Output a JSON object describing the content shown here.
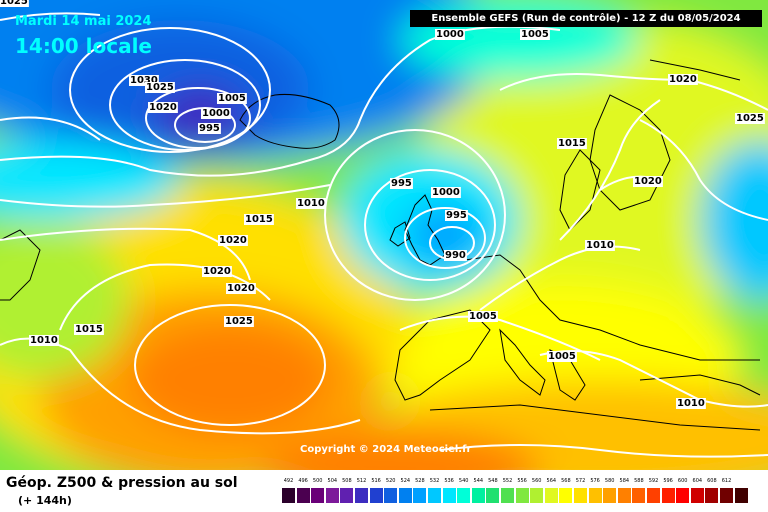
{
  "header": {
    "date": "Mardi 14 mai 2024",
    "time": "14:00 locale",
    "run": "Ensemble GEFS  (Run de contrôle)  -  12 Z du 08/05/2024"
  },
  "copyright": "Copyright © 2024 Meteociel.fr",
  "legend": {
    "title": "Géop. Z500 & pression au sol",
    "subtitle": "(+ 144h)",
    "scale": [
      {
        "label": "492",
        "color": "#2b002b"
      },
      {
        "label": "496",
        "color": "#4b0050"
      },
      {
        "label": "500",
        "color": "#6a0078"
      },
      {
        "label": "504",
        "color": "#7d1a9a"
      },
      {
        "label": "508",
        "color": "#6020b0"
      },
      {
        "label": "512",
        "color": "#3c2cc0"
      },
      {
        "label": "516",
        "color": "#2040d0"
      },
      {
        "label": "520",
        "color": "#1060e0"
      },
      {
        "label": "524",
        "color": "#0080f0"
      },
      {
        "label": "528",
        "color": "#00a0ff"
      },
      {
        "label": "532",
        "color": "#00c8ff"
      },
      {
        "label": "536",
        "color": "#00e6ff"
      },
      {
        "label": "540",
        "color": "#00ffd8"
      },
      {
        "label": "544",
        "color": "#00f0a0"
      },
      {
        "label": "548",
        "color": "#20e070"
      },
      {
        "label": "552",
        "color": "#50e050"
      },
      {
        "label": "556",
        "color": "#80e840"
      },
      {
        "label": "560",
        "color": "#b0f030"
      },
      {
        "label": "564",
        "color": "#e0f820"
      },
      {
        "label": "568",
        "color": "#ffff00"
      },
      {
        "label": "572",
        "color": "#ffe000"
      },
      {
        "label": "576",
        "color": "#ffc000"
      },
      {
        "label": "580",
        "color": "#ffa000"
      },
      {
        "label": "584",
        "color": "#ff8000"
      },
      {
        "label": "588",
        "color": "#ff6000"
      },
      {
        "label": "592",
        "color": "#ff4000"
      },
      {
        "label": "596",
        "color": "#ff2000"
      },
      {
        "label": "600",
        "color": "#ff0000"
      },
      {
        "label": "604",
        "color": "#d00000"
      },
      {
        "label": "608",
        "color": "#a00000"
      },
      {
        "label": "612",
        "color": "#700000"
      },
      {
        "label": "",
        "color": "#400000"
      }
    ]
  },
  "isobar_labels": [
    "1025",
    "1030",
    "1025",
    "1020",
    "1005",
    "1000",
    "995",
    "1000",
    "1005",
    "1020",
    "1025",
    "1015",
    "1020",
    "995",
    "1000",
    "995",
    "990",
    "1010",
    "1015",
    "1020",
    "1020",
    "1020",
    "1025",
    "1010",
    "1015",
    "1005",
    "1005",
    "1010",
    "1010"
  ]
}
